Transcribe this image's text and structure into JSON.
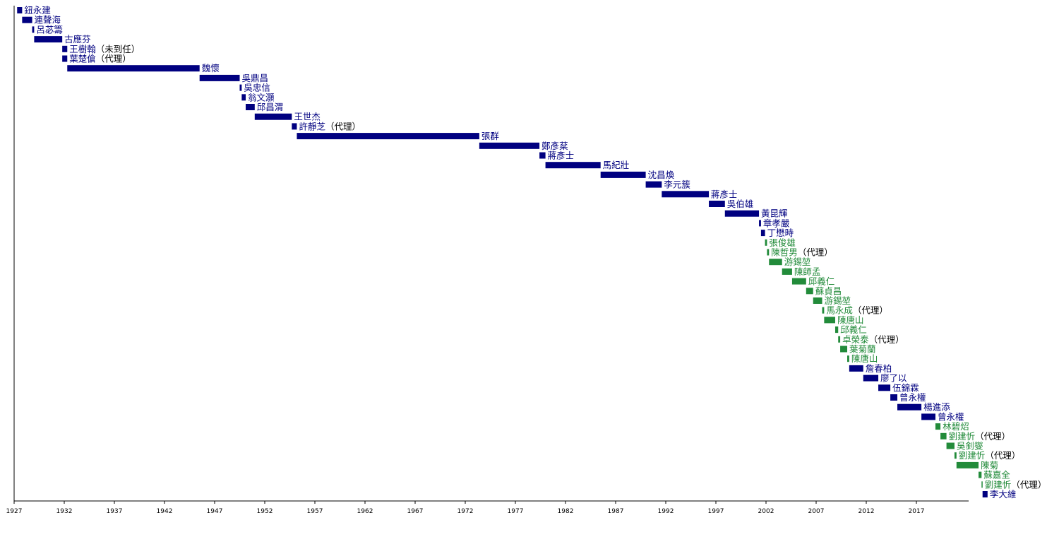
{
  "chart_data": {
    "type": "timeline",
    "title": "",
    "xlabel": "",
    "ylabel": "",
    "xlim": [
      1927,
      2022
    ],
    "x_ticks": [
      "1927",
      "1932",
      "1937",
      "1942",
      "1947",
      "1952",
      "1957",
      "1962",
      "1967",
      "1972",
      "1977",
      "1982",
      "1987",
      "1992",
      "1997",
      "2002",
      "2007",
      "2012",
      "2017"
    ],
    "grid": false,
    "colors": {
      "party_a": "#000080",
      "party_b": "#228b3a",
      "axis": "#000000",
      "suffix_text": "#000000"
    },
    "entries": [
      {
        "name": "鈕永建",
        "start": 1927.3,
        "end": 1927.8,
        "party": "party_a",
        "note": ""
      },
      {
        "name": "連聲海",
        "start": 1927.8,
        "end": 1928.8,
        "party": "party_a",
        "note": ""
      },
      {
        "name": "呂苾籌",
        "start": 1928.8,
        "end": 1929.0,
        "party": "party_a",
        "note": ""
      },
      {
        "name": "古應芬",
        "start": 1929.0,
        "end": 1931.8,
        "party": "party_a",
        "note": ""
      },
      {
        "name": "王樹翰",
        "start": 1931.8,
        "end": 1932.3,
        "party": "party_a",
        "note": "（未到任）"
      },
      {
        "name": "葉楚傖",
        "start": 1931.8,
        "end": 1932.3,
        "party": "party_a",
        "note": "（代理）"
      },
      {
        "name": "魏懷",
        "start": 1932.3,
        "end": 1945.5,
        "party": "party_a",
        "note": ""
      },
      {
        "name": "吳鼎昌",
        "start": 1945.5,
        "end": 1949.5,
        "party": "party_a",
        "note": ""
      },
      {
        "name": "吳忠信",
        "start": 1949.5,
        "end": 1949.7,
        "party": "party_a",
        "note": ""
      },
      {
        "name": "翁文灝",
        "start": 1949.7,
        "end": 1950.1,
        "party": "party_a",
        "note": ""
      },
      {
        "name": "邱昌渭",
        "start": 1950.1,
        "end": 1951.0,
        "party": "party_a",
        "note": ""
      },
      {
        "name": "王世杰",
        "start": 1951.0,
        "end": 1954.7,
        "party": "party_a",
        "note": ""
      },
      {
        "name": "許靜芝",
        "start": 1954.7,
        "end": 1955.2,
        "party": "party_a",
        "note": "（代理）"
      },
      {
        "name": "張群",
        "start": 1955.2,
        "end": 1973.4,
        "party": "party_a",
        "note": ""
      },
      {
        "name": "鄭彥棻",
        "start": 1973.4,
        "end": 1979.4,
        "party": "party_a",
        "note": ""
      },
      {
        "name": "蔣彥士",
        "start": 1979.4,
        "end": 1980.0,
        "party": "party_a",
        "note": ""
      },
      {
        "name": "馬紀壯",
        "start": 1980.0,
        "end": 1985.5,
        "party": "party_a",
        "note": ""
      },
      {
        "name": "沈昌煥",
        "start": 1985.5,
        "end": 1990.0,
        "party": "party_a",
        "note": ""
      },
      {
        "name": "李元簇",
        "start": 1990.0,
        "end": 1991.6,
        "party": "party_a",
        "note": ""
      },
      {
        "name": "蔣彥士",
        "start": 1991.6,
        "end": 1996.3,
        "party": "party_a",
        "note": ""
      },
      {
        "name": "吳伯雄",
        "start": 1996.3,
        "end": 1997.9,
        "party": "party_a",
        "note": ""
      },
      {
        "name": "黃昆輝",
        "start": 1997.9,
        "end": 2001.3,
        "party": "party_a",
        "note": ""
      },
      {
        "name": "章孝嚴",
        "start": 2001.3,
        "end": 2001.5,
        "party": "party_a",
        "note": ""
      },
      {
        "name": "丁懋時",
        "start": 2001.5,
        "end": 2001.9,
        "party": "party_a",
        "note": ""
      },
      {
        "name": "張俊雄",
        "start": 2001.9,
        "end": 2002.1,
        "party": "party_b",
        "note": ""
      },
      {
        "name": "陳哲男",
        "start": 2002.1,
        "end": 2002.3,
        "party": "party_b",
        "note": "（代理）"
      },
      {
        "name": "游錫堃",
        "start": 2002.3,
        "end": 2003.6,
        "party": "party_b",
        "note": ""
      },
      {
        "name": "陳師孟",
        "start": 2003.6,
        "end": 2004.6,
        "party": "party_b",
        "note": ""
      },
      {
        "name": "邱義仁",
        "start": 2004.6,
        "end": 2006.0,
        "party": "party_b",
        "note": ""
      },
      {
        "name": "蘇貞昌",
        "start": 2006.0,
        "end": 2006.7,
        "party": "party_b",
        "note": ""
      },
      {
        "name": "游錫堃",
        "start": 2006.7,
        "end": 2007.6,
        "party": "party_b",
        "note": ""
      },
      {
        "name": "馬永成",
        "start": 2007.6,
        "end": 2007.8,
        "party": "party_b",
        "note": "（代理）"
      },
      {
        "name": "陳唐山",
        "start": 2007.8,
        "end": 2008.9,
        "party": "party_b",
        "note": ""
      },
      {
        "name": "邱義仁",
        "start": 2008.9,
        "end": 2009.2,
        "party": "party_b",
        "note": ""
      },
      {
        "name": "卓榮泰",
        "start": 2009.2,
        "end": 2009.4,
        "party": "party_b",
        "note": "（代理）"
      },
      {
        "name": "葉菊蘭",
        "start": 2009.4,
        "end": 2010.1,
        "party": "party_b",
        "note": ""
      },
      {
        "name": "陳唐山",
        "start": 2010.1,
        "end": 2010.3,
        "party": "party_b",
        "note": ""
      },
      {
        "name": "詹春柏",
        "start": 2010.3,
        "end": 2011.7,
        "party": "party_a",
        "note": ""
      },
      {
        "name": "廖了以",
        "start": 2011.7,
        "end": 2013.2,
        "party": "party_a",
        "note": ""
      },
      {
        "name": "伍錦霖",
        "start": 2013.2,
        "end": 2014.4,
        "party": "party_a",
        "note": ""
      },
      {
        "name": "曾永權",
        "start": 2014.4,
        "end": 2015.1,
        "party": "party_a",
        "note": ""
      },
      {
        "name": "楊進添",
        "start": 2015.1,
        "end": 2017.5,
        "party": "party_a",
        "note": ""
      },
      {
        "name": "曾永權",
        "start": 2017.5,
        "end": 2018.9,
        "party": "party_a",
        "note": ""
      },
      {
        "name": "林碧炤",
        "start": 2018.9,
        "end": 2019.4,
        "party": "party_b",
        "note": ""
      },
      {
        "name": "劉建忻",
        "start": 2019.4,
        "end": 2020.0,
        "party": "party_b",
        "note": "（代理）"
      },
      {
        "name": "吳釗燮",
        "start": 2020.0,
        "end": 2020.8,
        "party": "party_b",
        "note": ""
      },
      {
        "name": "劉建忻",
        "start": 2020.8,
        "end": 2021.0,
        "party": "party_b",
        "note": "（代理）"
      },
      {
        "name": "陳菊",
        "start": 2021.0,
        "end": 2023.2,
        "party": "party_b",
        "note": ""
      },
      {
        "name": "蘇嘉全",
        "start": 2023.2,
        "end": 2023.5,
        "party": "party_b",
        "note": ""
      },
      {
        "name": "劉建忻",
        "start": 2023.5,
        "end": 2023.6,
        "party": "party_b",
        "note": "（代理）"
      },
      {
        "name": "李大維",
        "start": 2023.6,
        "end": 2024.1,
        "party": "party_a",
        "note": ""
      }
    ]
  }
}
